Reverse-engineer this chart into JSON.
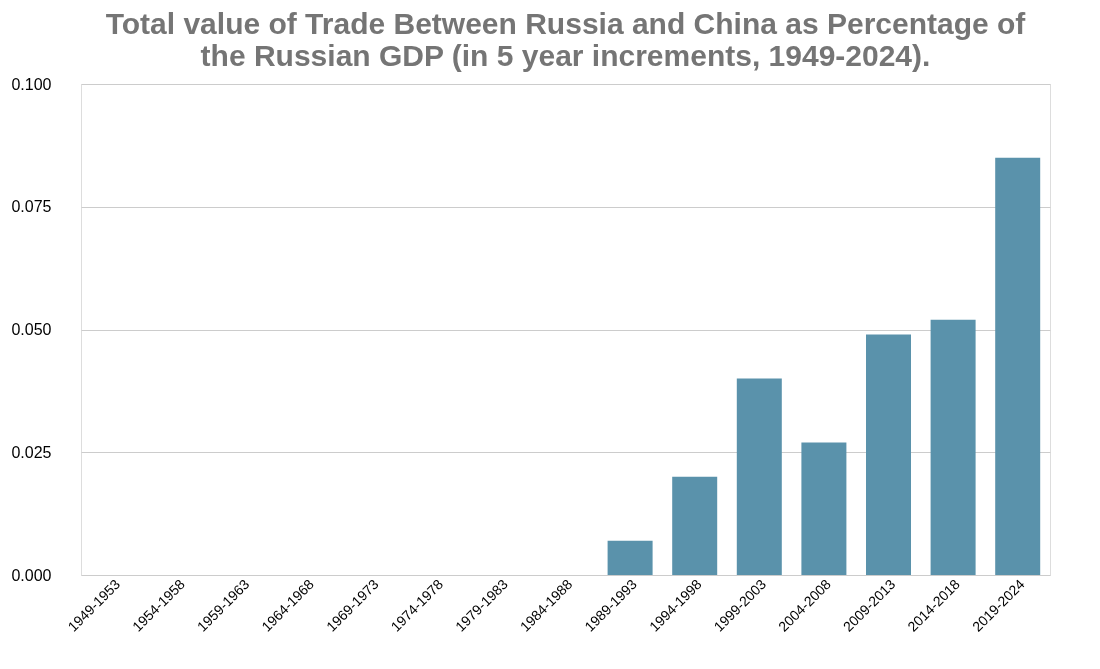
{
  "chart_data": {
    "type": "bar",
    "title": [
      "Total value of Trade Between Russia and China as Percentage of",
      "the Russian GDP (in 5 year increments, 1949-2024)."
    ],
    "categories": [
      "1949-1953",
      "1954-1958",
      "1959-1963",
      "1964-1968",
      "1969-1973",
      "1974-1978",
      "1979-1983",
      "1984-1988",
      "1989-1993",
      "1994-1998",
      "1999-2003",
      "2004-2008",
      "2009-2013",
      "2014-2018",
      "2019-2024"
    ],
    "values": [
      0,
      0,
      0,
      0,
      0,
      0,
      0,
      0,
      0.007,
      0.02,
      0.04,
      0.027,
      0.049,
      0.052,
      0.085
    ],
    "color": "#5a92ab",
    "ylim": [
      0,
      0.1
    ],
    "yticks": [
      {
        "value": 0,
        "label": "0.000"
      },
      {
        "value": 0.025,
        "label": "0.025"
      },
      {
        "value": 0.05,
        "label": "0.050"
      },
      {
        "value": 0.075,
        "label": "0.075"
      },
      {
        "value": 0.1,
        "label": "0.100"
      }
    ],
    "grid": "y"
  }
}
